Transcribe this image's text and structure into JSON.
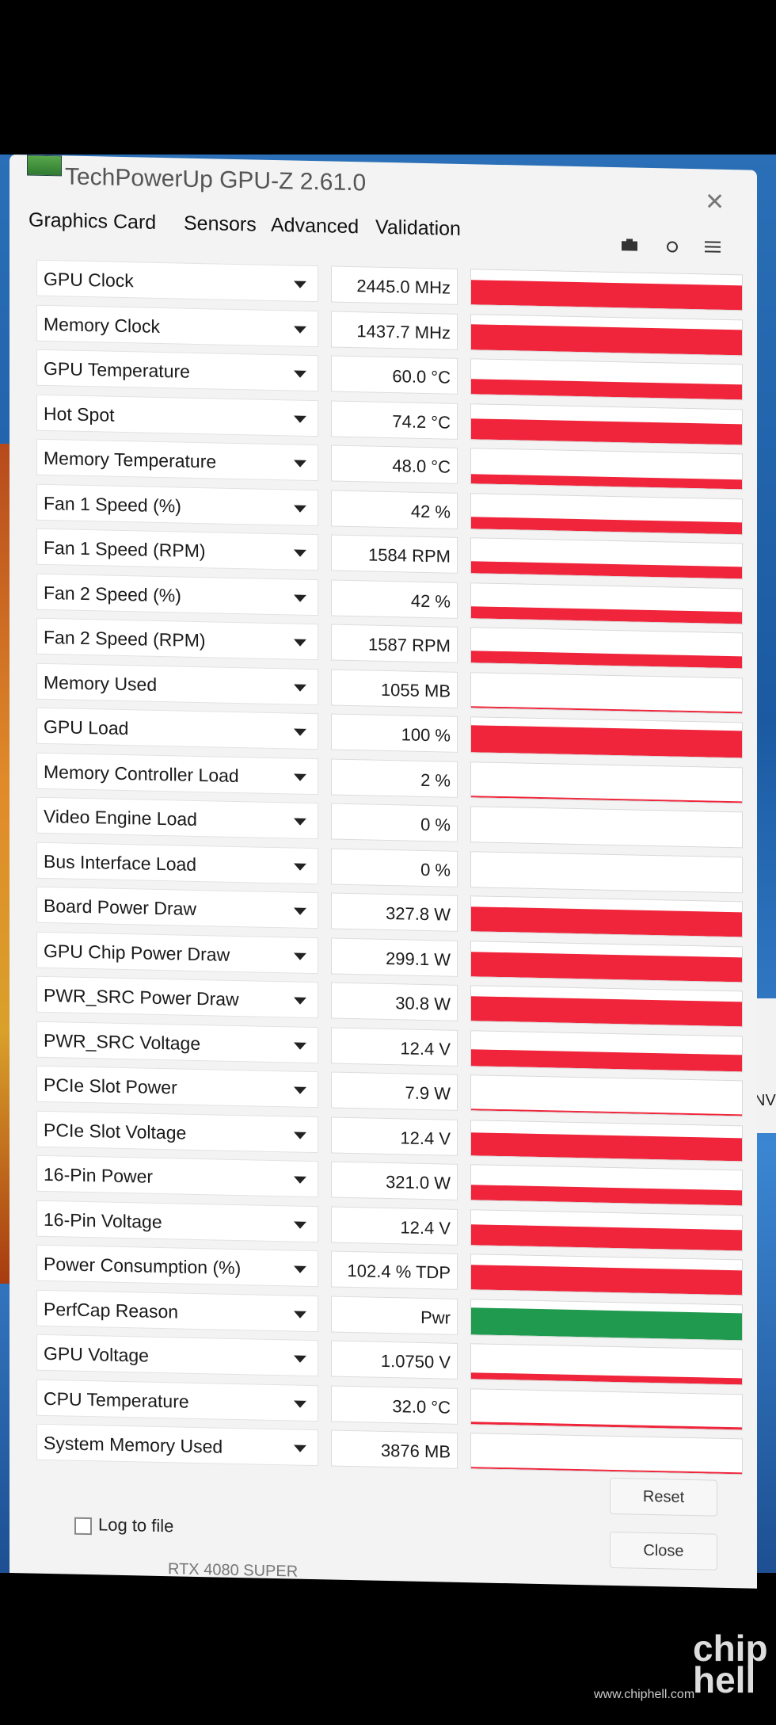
{
  "window": {
    "title": "TechPowerUp GPU-Z 2.61.0",
    "close_symbol": "✕"
  },
  "tabs": [
    {
      "label": "Graphics Card"
    },
    {
      "label": "Sensors"
    },
    {
      "label": "Advanced"
    },
    {
      "label": "Validation"
    }
  ],
  "toolbar": {
    "screenshot_icon": "camera-icon",
    "refresh_icon": "refresh-icon",
    "menu_icon": "menu-icon"
  },
  "sensors": [
    {
      "name": "GPU Clock",
      "value": "2445.0 MHz",
      "level": 0.92,
      "color": "#f0243a"
    },
    {
      "name": "Memory Clock",
      "value": "1437.7 MHz",
      "level": 0.92,
      "color": "#f0243a"
    },
    {
      "name": "GPU Temperature",
      "value": "60.0 °C",
      "level": 0.55,
      "color": "#f0243a"
    },
    {
      "name": "Hot Spot",
      "value": "74.2 °C",
      "level": 0.75,
      "color": "#f0243a"
    },
    {
      "name": "Memory Temperature",
      "value": "48.0 °C",
      "level": 0.35,
      "color": "#f0243a"
    },
    {
      "name": "Fan 1 Speed (%)",
      "value": "42 %",
      "level": 0.42,
      "color": "#f0243a"
    },
    {
      "name": "Fan 1 Speed (RPM)",
      "value": "1584 RPM",
      "level": 0.45,
      "color": "#f0243a"
    },
    {
      "name": "Fan 2 Speed (%)",
      "value": "42 %",
      "level": 0.42,
      "color": "#f0243a"
    },
    {
      "name": "Fan 2 Speed (RPM)",
      "value": "1587 RPM",
      "level": 0.45,
      "color": "#f0243a"
    },
    {
      "name": "Memory Used",
      "value": "1055 MB",
      "level": 0.04,
      "color": "#f0243a"
    },
    {
      "name": "GPU Load",
      "value": "100 %",
      "level": 1.0,
      "color": "#f0243a"
    },
    {
      "name": "Memory Controller Load",
      "value": "2 %",
      "level": 0.02,
      "color": "#f0243a"
    },
    {
      "name": "Video Engine Load",
      "value": "0 %",
      "level": 0.0,
      "color": "#f0243a"
    },
    {
      "name": "Bus Interface Load",
      "value": "0 %",
      "level": 0.0,
      "color": "#f0243a"
    },
    {
      "name": "Board Power Draw",
      "value": "327.8 W",
      "level": 0.9,
      "color": "#f0243a"
    },
    {
      "name": "GPU Chip Power Draw",
      "value": "299.1 W",
      "level": 0.9,
      "color": "#f0243a"
    },
    {
      "name": "PWR_SRC Power Draw",
      "value": "30.8 W",
      "level": 0.9,
      "color": "#f0243a"
    },
    {
      "name": "PWR_SRC Voltage",
      "value": "12.4 V",
      "level": 0.6,
      "color": "#f0243a"
    },
    {
      "name": "PCIe Slot Power",
      "value": "7.9 W",
      "level": 0.05,
      "color": "#f0243a"
    },
    {
      "name": "PCIe Slot Voltage",
      "value": "12.4 V",
      "level": 0.85,
      "color": "#f0243a"
    },
    {
      "name": "16-Pin Power",
      "value": "321.0 W",
      "level": 0.55,
      "color": "#f0243a"
    },
    {
      "name": "16-Pin Voltage",
      "value": "12.4 V",
      "level": 0.75,
      "color": "#f0243a"
    },
    {
      "name": "Power Consumption (%)",
      "value": "102.4 % TDP",
      "level": 0.9,
      "color": "#f0243a"
    },
    {
      "name": "PerfCap Reason",
      "value": "Pwr",
      "level": 1.0,
      "color": "#1f9a4e"
    },
    {
      "name": "GPU Voltage",
      "value": "1.0750 V",
      "level": 0.25,
      "color": "#f0243a"
    },
    {
      "name": "CPU Temperature",
      "value": "32.0 °C",
      "level": 0.08,
      "color": "#f0243a"
    },
    {
      "name": "System Memory Used",
      "value": "3876 MB",
      "level": 0.05,
      "color": "#f0243a"
    }
  ],
  "footer": {
    "log_label": "Log to file",
    "reset_label": "Reset",
    "close_label": "Close",
    "gpu_name": "RTX 4080 SUPER"
  },
  "side_panel_text": "NV",
  "watermark": {
    "logo": "chip hell",
    "url": "www.chiphell.com"
  }
}
